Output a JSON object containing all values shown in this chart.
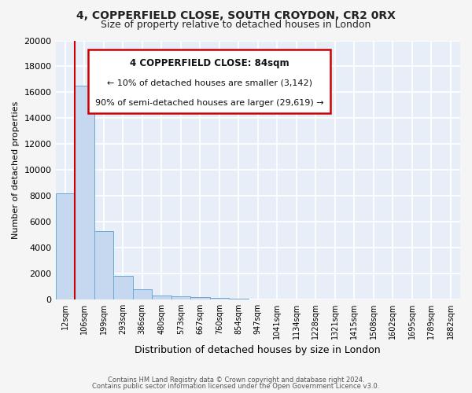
{
  "title1": "4, COPPERFIELD CLOSE, SOUTH CROYDON, CR2 0RX",
  "title2": "Size of property relative to detached houses in London",
  "xlabel": "Distribution of detached houses by size in London",
  "ylabel": "Number of detached properties",
  "bar_color": "#c5d8ef",
  "bar_edge_color": "#6aaad4",
  "background_color": "#e8eef7",
  "plot_bg_color": "#e8eef7",
  "grid_color": "#ffffff",
  "annotation_box_color": "#ffffff",
  "annotation_border_color": "#cc0000",
  "red_line_color": "#cc0000",
  "categories": [
    "12sqm",
    "106sqm",
    "199sqm",
    "293sqm",
    "386sqm",
    "480sqm",
    "573sqm",
    "667sqm",
    "760sqm",
    "854sqm",
    "947sqm",
    "1041sqm",
    "1134sqm",
    "1228sqm",
    "1321sqm",
    "1415sqm",
    "1508sqm",
    "1602sqm",
    "1695sqm",
    "1789sqm",
    "1882sqm"
  ],
  "values": [
    8200,
    16500,
    5300,
    1800,
    800,
    300,
    250,
    150,
    100,
    75,
    0,
    0,
    0,
    0,
    0,
    0,
    0,
    0,
    0,
    0,
    0
  ],
  "ylim": [
    0,
    20000
  ],
  "yticks": [
    0,
    2000,
    4000,
    6000,
    8000,
    10000,
    12000,
    14000,
    16000,
    18000,
    20000
  ],
  "annotation_line1": "4 COPPERFIELD CLOSE: 84sqm",
  "annotation_line2": "← 10% of detached houses are smaller (3,142)",
  "annotation_line3": "90% of semi-detached houses are larger (29,619) →",
  "footer1": "Contains HM Land Registry data © Crown copyright and database right 2024.",
  "footer2": "Contains public sector information licensed under the Open Government Licence v3.0."
}
